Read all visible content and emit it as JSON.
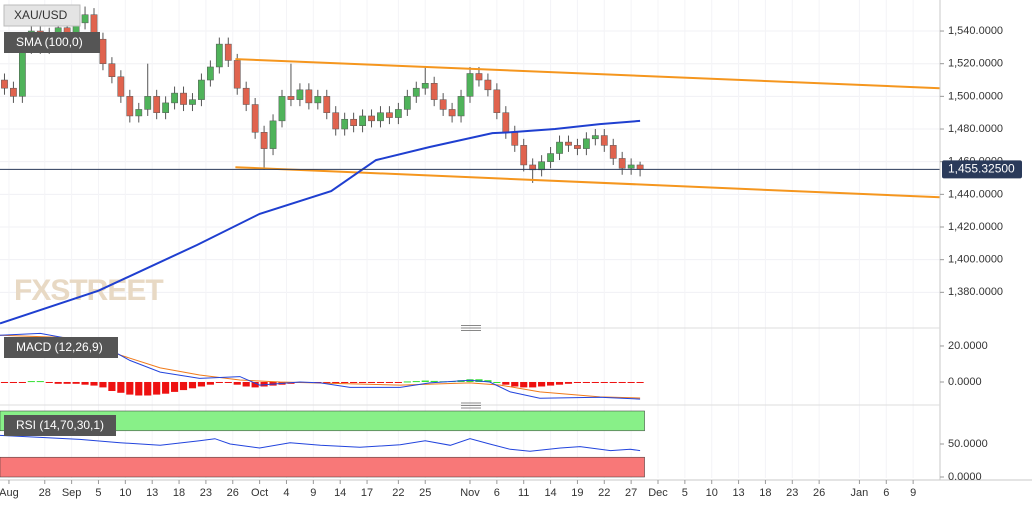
{
  "chart_data": [
    {
      "type": "candlestick",
      "title": "XAU/USD",
      "watermark": "FXSTREET",
      "up_color": "#4fb35a",
      "down_color": "#e0634e",
      "open": [
        1510,
        1505,
        1500,
        1530,
        1540,
        1530,
        1538,
        1542,
        1532,
        1545,
        1550,
        1535,
        1520,
        1512,
        1500,
        1488,
        1492,
        1500,
        1490,
        1496,
        1502,
        1495,
        1498,
        1510,
        1518,
        1532,
        1522,
        1505,
        1495,
        1478,
        1468,
        1485,
        1500,
        1498,
        1504,
        1496,
        1500,
        1490,
        1480,
        1486,
        1482,
        1488,
        1485,
        1490,
        1487,
        1492,
        1500,
        1505,
        1508,
        1498,
        1492,
        1488,
        1500,
        1514,
        1510,
        1504,
        1490,
        1478,
        1470,
        1458,
        1455,
        1460,
        1465,
        1472,
        1470,
        1468,
        1474,
        1476,
        1470,
        1462,
        1456,
        1458
      ],
      "high": [
        1514,
        1509,
        1534,
        1544,
        1544,
        1542,
        1546,
        1546,
        1549,
        1555,
        1554,
        1539,
        1524,
        1516,
        1504,
        1496,
        1520,
        1504,
        1500,
        1506,
        1506,
        1502,
        1514,
        1522,
        1536,
        1536,
        1526,
        1509,
        1499,
        1482,
        1489,
        1504,
        1520,
        1508,
        1508,
        1504,
        1504,
        1494,
        1490,
        1490,
        1492,
        1492,
        1494,
        1494,
        1496,
        1504,
        1509,
        1518,
        1512,
        1502,
        1496,
        1504,
        1518,
        1518,
        1514,
        1508,
        1494,
        1482,
        1474,
        1462,
        1464,
        1469,
        1476,
        1476,
        1474,
        1478,
        1480,
        1480,
        1474,
        1466,
        1462,
        1460
      ],
      "low": [
        1501,
        1496,
        1496,
        1526,
        1526,
        1526,
        1534,
        1528,
        1528,
        1541,
        1531,
        1516,
        1508,
        1496,
        1484,
        1484,
        1488,
        1486,
        1486,
        1492,
        1491,
        1491,
        1494,
        1506,
        1514,
        1518,
        1501,
        1491,
        1474,
        1455,
        1464,
        1481,
        1494,
        1494,
        1492,
        1492,
        1486,
        1476,
        1476,
        1478,
        1478,
        1481,
        1481,
        1483,
        1483,
        1488,
        1496,
        1501,
        1494,
        1488,
        1484,
        1484,
        1496,
        1506,
        1500,
        1486,
        1474,
        1466,
        1454,
        1447,
        1451,
        1456,
        1461,
        1466,
        1464,
        1464,
        1470,
        1466,
        1458,
        1452,
        1452,
        1451
      ],
      "close": [
        1505,
        1500,
        1530,
        1540,
        1530,
        1538,
        1542,
        1532,
        1545,
        1550,
        1535,
        1520,
        1512,
        1500,
        1488,
        1492,
        1500,
        1490,
        1496,
        1502,
        1495,
        1498,
        1510,
        1518,
        1532,
        1522,
        1505,
        1495,
        1478,
        1468,
        1485,
        1500,
        1498,
        1504,
        1496,
        1500,
        1490,
        1480,
        1486,
        1482,
        1488,
        1485,
        1490,
        1487,
        1492,
        1500,
        1505,
        1508,
        1498,
        1492,
        1488,
        1500,
        1514,
        1510,
        1504,
        1490,
        1478,
        1470,
        1458,
        1455,
        1460,
        1465,
        1472,
        1470,
        1468,
        1474,
        1476,
        1470,
        1462,
        1456,
        1458,
        1455.3
      ],
      "sma": {
        "name": "SMA (100,0)",
        "color": "#1f3fd0",
        "x": [
          0,
          11,
          22,
          29,
          37,
          42,
          48,
          55,
          57,
          62,
          67,
          71.5
        ],
        "values": [
          1361,
          1381,
          1409,
          1428,
          1442,
          1461,
          1469,
          1477.5,
          1478,
          1480,
          1483,
          1485
        ]
      },
      "trendlines": {
        "color": "#f5961e",
        "lines": [
          {
            "x": [
              26.3,
              105
            ],
            "values": [
              1522.8,
              1505
            ]
          },
          {
            "x": [
              26.3,
              105
            ],
            "values": [
              1456.6,
              1438.2
            ]
          }
        ]
      },
      "last_price": {
        "value": 1455.325,
        "label": "1,455.32500"
      },
      "xlim": [
        0,
        105
      ],
      "ylim": [
        1360,
        1559
      ],
      "grid": true,
      "yticks": [
        {
          "value": 1380,
          "label": "1,380.0000"
        },
        {
          "value": 1400,
          "label": "1,400.0000"
        },
        {
          "value": 1420,
          "label": "1,420.0000"
        },
        {
          "value": 1440,
          "label": "1,440.0000"
        },
        {
          "value": 1460,
          "label": "1,460.0000"
        },
        {
          "value": 1480,
          "label": "1,480.0000"
        },
        {
          "value": 1500,
          "label": "1,500.0000"
        },
        {
          "value": 1520,
          "label": "1,520.0000"
        },
        {
          "value": 1540,
          "label": "1,540.0000"
        }
      ],
      "xticks": [
        {
          "value": 1,
          "label": "Aug"
        },
        {
          "value": 5,
          "label": "28"
        },
        {
          "value": 8,
          "label": "Sep"
        },
        {
          "value": 11,
          "label": "5"
        },
        {
          "value": 14,
          "label": "10"
        },
        {
          "value": 17,
          "label": "13"
        },
        {
          "value": 20,
          "label": "18"
        },
        {
          "value": 23,
          "label": "23"
        },
        {
          "value": 26,
          "label": "26"
        },
        {
          "value": 29,
          "label": "Oct"
        },
        {
          "value": 32,
          "label": "4"
        },
        {
          "value": 35,
          "label": "9"
        },
        {
          "value": 38,
          "label": "14"
        },
        {
          "value": 41,
          "label": "17"
        },
        {
          "value": 44.5,
          "label": "22"
        },
        {
          "value": 47.5,
          "label": "25"
        },
        {
          "value": 52.5,
          "label": "Nov"
        },
        {
          "value": 55.5,
          "label": "6"
        },
        {
          "value": 58.5,
          "label": "11"
        },
        {
          "value": 61.5,
          "label": "14"
        },
        {
          "value": 64.5,
          "label": "19"
        },
        {
          "value": 67.5,
          "label": "22"
        },
        {
          "value": 70.5,
          "label": "27"
        },
        {
          "value": 73.5,
          "label": "Dec"
        },
        {
          "value": 76.5,
          "label": "5"
        },
        {
          "value": 79.5,
          "label": "10"
        },
        {
          "value": 82.5,
          "label": "13"
        },
        {
          "value": 85.5,
          "label": "18"
        },
        {
          "value": 88.5,
          "label": "23"
        },
        {
          "value": 91.5,
          "label": "26"
        },
        {
          "value": 96,
          "label": "Jan"
        },
        {
          "value": 99,
          "label": "6"
        },
        {
          "value": 102,
          "label": "9"
        }
      ]
    },
    {
      "type": "macd",
      "title": "MACD (12,26,9)",
      "xlim": [
        0,
        105
      ],
      "ylim": [
        -10,
        27.2
      ],
      "yticks": [
        {
          "value": 0,
          "label": "0.0000"
        },
        {
          "value": 20,
          "label": "20.0000"
        }
      ],
      "histogram": {
        "up_color": "#33e033",
        "down_color": "#ee1111",
        "values": [
          -0.5,
          -0.5,
          -0.5,
          0.5,
          0.5,
          -0.5,
          -1,
          -1,
          -1,
          -1.5,
          -2,
          -3,
          -5,
          -6,
          -7,
          -7.5,
          -7.5,
          -7,
          -6.5,
          -5.5,
          -4.5,
          -3.5,
          -2.5,
          -1.5,
          -0.5,
          -0.5,
          -1.5,
          -2.5,
          -3,
          -2.5,
          -2,
          -1.5,
          -1,
          -0.5,
          -0.5,
          -0.5,
          -0.3,
          -0.3,
          -0.2,
          -0.2,
          -0.2,
          -0.2,
          -0.2,
          -0.2,
          -0.2,
          0.3,
          0.5,
          0.8,
          0.6,
          0.4,
          0.5,
          1,
          1.5,
          1.5,
          1,
          0,
          -1.5,
          -2.5,
          -3,
          -3,
          -2.5,
          -2,
          -1.5,
          -1,
          -0.5,
          -0.5,
          -0.3,
          -0.3,
          -0.3,
          -0.3,
          -0.3,
          -0.3
        ]
      },
      "macd": {
        "color": "#2244dd",
        "x": [
          0,
          4.5,
          8.9,
          12.3,
          14.5,
          17.9,
          22.3,
          26.8,
          29,
          33.5,
          35.8,
          39.1,
          44.7,
          48,
          52.5,
          54.7,
          57,
          60.3,
          67,
          71.5
        ],
        "values": [
          26,
          27,
          23,
          18,
          12,
          5.5,
          2,
          3,
          -1.7,
          0,
          -0.5,
          -3,
          -3,
          -0.5,
          1,
          0,
          -5.5,
          -9,
          -8.5,
          -9.5
        ]
      },
      "signal": {
        "color": "#f07a1a",
        "x": [
          0,
          8.9,
          13.4,
          17.9,
          22.3,
          26.8,
          31.3,
          44.7,
          52.5,
          55.9,
          60.3,
          67,
          71.5
        ],
        "values": [
          26,
          24.4,
          15,
          7.8,
          3.9,
          1.1,
          0,
          -1.7,
          -0.5,
          -1.7,
          -5.5,
          -8.3,
          -8.9
        ]
      }
    },
    {
      "type": "rsi",
      "title": "RSI (14,70,30,1)",
      "xlim": [
        0,
        105
      ],
      "ylim": [
        -1.5,
        101.5
      ],
      "yticks": [
        {
          "value": 0,
          "label": "0.0000"
        },
        {
          "value": 50,
          "label": "50.0000"
        }
      ],
      "zones": [
        {
          "from": 70,
          "to": 100,
          "color": "#88f088"
        },
        {
          "from": 0,
          "to": 30,
          "color": "#f87878"
        }
      ],
      "rsi": {
        "color": "#2244dd",
        "x": [
          0,
          4.5,
          8.9,
          13.4,
          17.9,
          22.3,
          24,
          25.7,
          29,
          32.4,
          35.8,
          40.2,
          44.7,
          47.5,
          50.3,
          52.5,
          54.7,
          57,
          59.2,
          62.6,
          64.8,
          68.2,
          70.4,
          71.5
        ],
        "values": [
          63,
          60,
          57,
          52,
          48,
          55,
          58,
          50,
          44,
          52,
          48,
          45,
          49,
          55,
          48,
          58,
          50,
          42,
          39,
          44,
          46,
          40,
          42,
          40
        ]
      }
    }
  ]
}
